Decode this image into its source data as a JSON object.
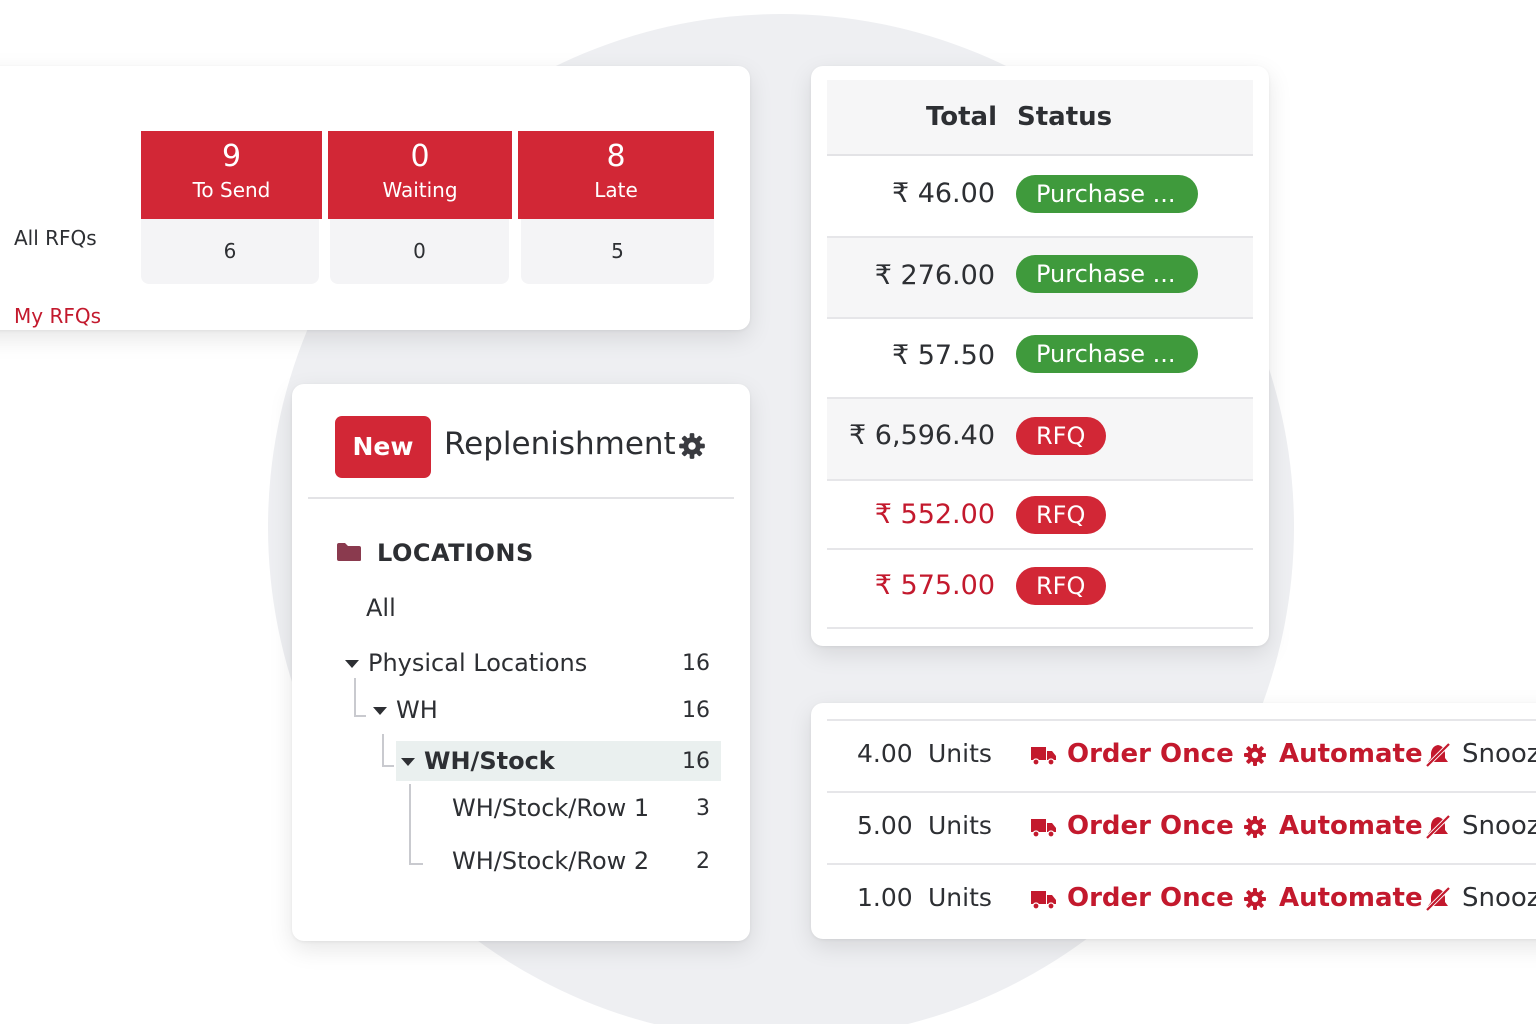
{
  "rfq": {
    "row_all": "All RFQs",
    "row_my": "My RFQs",
    "tiles": [
      {
        "count": "9",
        "label": "To Send"
      },
      {
        "count": "0",
        "label": "Waiting"
      },
      {
        "count": "8",
        "label": "Late"
      }
    ],
    "my_counts": [
      "6",
      "0",
      "5"
    ],
    "colors": {
      "accent": "#d22736",
      "link": "#c3192d"
    }
  },
  "status_table": {
    "headers": {
      "total": "Total",
      "status": "Status"
    },
    "rows": [
      {
        "amount": "₹ 46.00",
        "status": "Purchase ...",
        "status_color": "green",
        "amount_color": "default"
      },
      {
        "amount": "₹ 276.00",
        "status": "Purchase ...",
        "status_color": "green",
        "amount_color": "default"
      },
      {
        "amount": "₹ 57.50",
        "status": "Purchase ...",
        "status_color": "green",
        "amount_color": "default"
      },
      {
        "amount": "₹ 6,596.40",
        "status": "RFQ",
        "status_color": "red",
        "amount_color": "default"
      },
      {
        "amount": "₹ 552.00",
        "status": "RFQ",
        "status_color": "red",
        "amount_color": "red"
      },
      {
        "amount": "₹ 575.00",
        "status": "RFQ",
        "status_color": "red",
        "amount_color": "red"
      }
    ],
    "colors": {
      "green": "#3f9a3c",
      "red": "#d22736"
    }
  },
  "replenishment": {
    "new_label": "New",
    "title": "Replenishment",
    "gear_icon": "gear-icon",
    "locations_heading": "LOCATIONS",
    "folder_icon": "folder-icon",
    "all_label": "All",
    "tree": [
      {
        "label": "Physical Locations",
        "count": "16"
      },
      {
        "label": "WH",
        "count": "16"
      },
      {
        "label": "WH/Stock",
        "count": "16"
      },
      {
        "label": "WH/Stock/Row 1",
        "count": "3"
      },
      {
        "label": "WH/Stock/Row 2",
        "count": "2"
      }
    ]
  },
  "units": {
    "rows": [
      {
        "qty": "4.00",
        "uom": "Units"
      },
      {
        "qty": "5.00",
        "uom": "Units"
      },
      {
        "qty": "1.00",
        "uom": "Units"
      }
    ],
    "actions": {
      "order_once": "Order Once",
      "automate": "Automate",
      "snooze": "Snooz"
    },
    "icons": {
      "order_once": "truck-icon",
      "automate": "gear-icon",
      "snooze": "bell-slash-icon"
    }
  }
}
